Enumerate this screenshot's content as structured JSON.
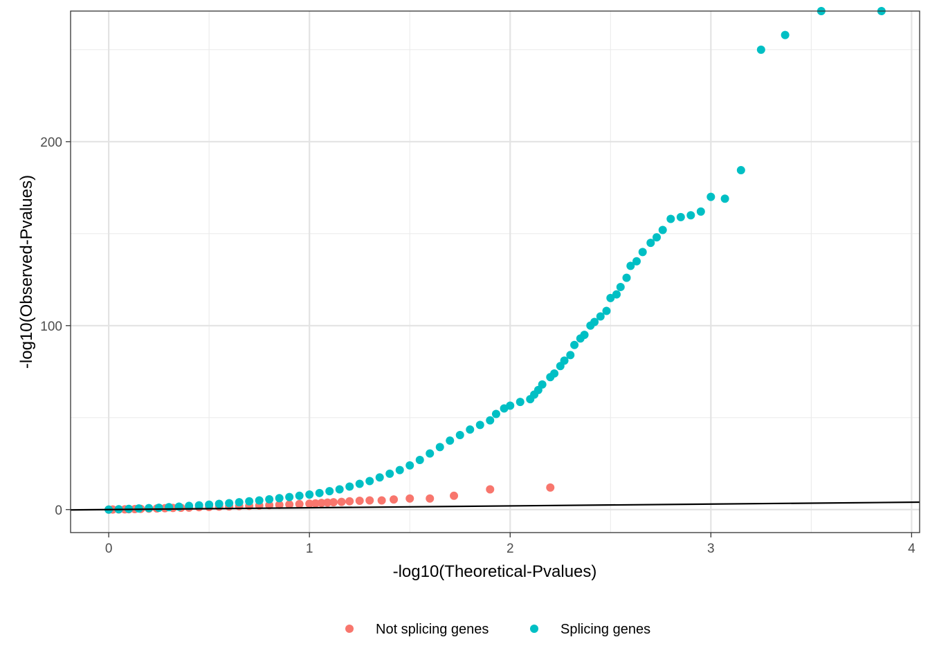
{
  "chart_data": {
    "type": "scatter",
    "title": "",
    "xlabel": "-log10(Theoretical-Pvalues)",
    "ylabel": "-log10(Observed-Pvalues)",
    "xlim": [
      -0.19,
      4.04
    ],
    "ylim": [
      -12.5,
      271
    ],
    "x_ticks": [
      0,
      1,
      2,
      3,
      4
    ],
    "x_tick_labels": [
      "0",
      "1",
      "2",
      "3",
      "4"
    ],
    "y_ticks": [
      0,
      100,
      200
    ],
    "y_tick_labels": [
      "0",
      "100",
      "200"
    ],
    "x_minor_ticks": [
      0.5,
      1.5,
      2.5,
      3.5
    ],
    "y_minor_ticks": [
      50,
      150,
      250
    ],
    "grid": true,
    "legend_position": "bottom",
    "reference_line": {
      "intercept": 0,
      "slope": 1,
      "color": "#000000"
    },
    "series": [
      {
        "name": "Not splicing genes",
        "color": "#F8766D",
        "points": [
          [
            0.0,
            0.0
          ],
          [
            0.02,
            0.05
          ],
          [
            0.05,
            0.1
          ],
          [
            0.08,
            0.15
          ],
          [
            0.1,
            0.2
          ],
          [
            0.13,
            0.3
          ],
          [
            0.16,
            0.4
          ],
          [
            0.2,
            0.5
          ],
          [
            0.24,
            0.6
          ],
          [
            0.28,
            0.75
          ],
          [
            0.32,
            0.9
          ],
          [
            0.36,
            1.0
          ],
          [
            0.4,
            1.1
          ],
          [
            0.45,
            1.3
          ],
          [
            0.5,
            1.4
          ],
          [
            0.55,
            1.6
          ],
          [
            0.6,
            1.7
          ],
          [
            0.65,
            1.9
          ],
          [
            0.7,
            2.0
          ],
          [
            0.75,
            2.2
          ],
          [
            0.8,
            2.4
          ],
          [
            0.85,
            2.6
          ],
          [
            0.9,
            2.8
          ],
          [
            0.95,
            3.0
          ],
          [
            1.0,
            3.2
          ],
          [
            1.03,
            3.4
          ],
          [
            1.06,
            3.6
          ],
          [
            1.09,
            3.8
          ],
          [
            1.12,
            4.0
          ],
          [
            1.16,
            4.2
          ],
          [
            1.2,
            4.5
          ],
          [
            1.25,
            4.8
          ],
          [
            1.3,
            5.0
          ],
          [
            1.36,
            5.0
          ],
          [
            1.42,
            5.5
          ],
          [
            1.5,
            6.0
          ],
          [
            1.6,
            6.0
          ],
          [
            1.72,
            7.5
          ],
          [
            1.9,
            11.0
          ],
          [
            2.2,
            12.0
          ]
        ]
      },
      {
        "name": "Splicing genes",
        "color": "#00BFC4",
        "points": [
          [
            0.0,
            0.0
          ],
          [
            0.05,
            0.2
          ],
          [
            0.1,
            0.4
          ],
          [
            0.15,
            0.6
          ],
          [
            0.2,
            0.8
          ],
          [
            0.25,
            1.0
          ],
          [
            0.3,
            1.3
          ],
          [
            0.35,
            1.6
          ],
          [
            0.4,
            2.0
          ],
          [
            0.45,
            2.3
          ],
          [
            0.5,
            2.7
          ],
          [
            0.55,
            3.1
          ],
          [
            0.6,
            3.5
          ],
          [
            0.65,
            4.0
          ],
          [
            0.7,
            4.5
          ],
          [
            0.75,
            5.0
          ],
          [
            0.8,
            5.6
          ],
          [
            0.85,
            6.2
          ],
          [
            0.9,
            6.8
          ],
          [
            0.95,
            7.5
          ],
          [
            1.0,
            8.2
          ],
          [
            1.05,
            9.0
          ],
          [
            1.1,
            10.0
          ],
          [
            1.15,
            11.0
          ],
          [
            1.2,
            12.5
          ],
          [
            1.25,
            14.0
          ],
          [
            1.3,
            15.5
          ],
          [
            1.35,
            17.5
          ],
          [
            1.4,
            19.5
          ],
          [
            1.45,
            21.5
          ],
          [
            1.5,
            24.0
          ],
          [
            1.55,
            27.0
          ],
          [
            1.6,
            30.5
          ],
          [
            1.65,
            34.0
          ],
          [
            1.7,
            37.5
          ],
          [
            1.75,
            40.5
          ],
          [
            1.8,
            43.5
          ],
          [
            1.85,
            46.0
          ],
          [
            1.9,
            48.5
          ],
          [
            1.93,
            52.0
          ],
          [
            1.97,
            55.0
          ],
          [
            2.0,
            56.5
          ],
          [
            2.05,
            58.5
          ],
          [
            2.1,
            60.0
          ],
          [
            2.12,
            62.5
          ],
          [
            2.14,
            65.0
          ],
          [
            2.16,
            68.0
          ],
          [
            2.2,
            72.0
          ],
          [
            2.22,
            74.0
          ],
          [
            2.25,
            78.0
          ],
          [
            2.27,
            81.0
          ],
          [
            2.3,
            84.0
          ],
          [
            2.32,
            89.5
          ],
          [
            2.35,
            93.0
          ],
          [
            2.37,
            95.0
          ],
          [
            2.4,
            100.0
          ],
          [
            2.42,
            102.0
          ],
          [
            2.45,
            105.0
          ],
          [
            2.48,
            108.0
          ],
          [
            2.5,
            115.0
          ],
          [
            2.53,
            117.0
          ],
          [
            2.55,
            121.0
          ],
          [
            2.58,
            126.0
          ],
          [
            2.6,
            132.5
          ],
          [
            2.63,
            135.0
          ],
          [
            2.66,
            140.0
          ],
          [
            2.7,
            145.0
          ],
          [
            2.73,
            148.0
          ],
          [
            2.76,
            152.0
          ],
          [
            2.8,
            158.0
          ],
          [
            2.85,
            159.0
          ],
          [
            2.9,
            160.0
          ],
          [
            2.95,
            162.0
          ],
          [
            3.0,
            170.0
          ],
          [
            3.07,
            169.0
          ],
          [
            3.15,
            184.5
          ],
          [
            3.25,
            250.0
          ],
          [
            3.37,
            258.0
          ],
          [
            3.55,
            271.0
          ],
          [
            3.85,
            271.0
          ]
        ]
      }
    ]
  }
}
